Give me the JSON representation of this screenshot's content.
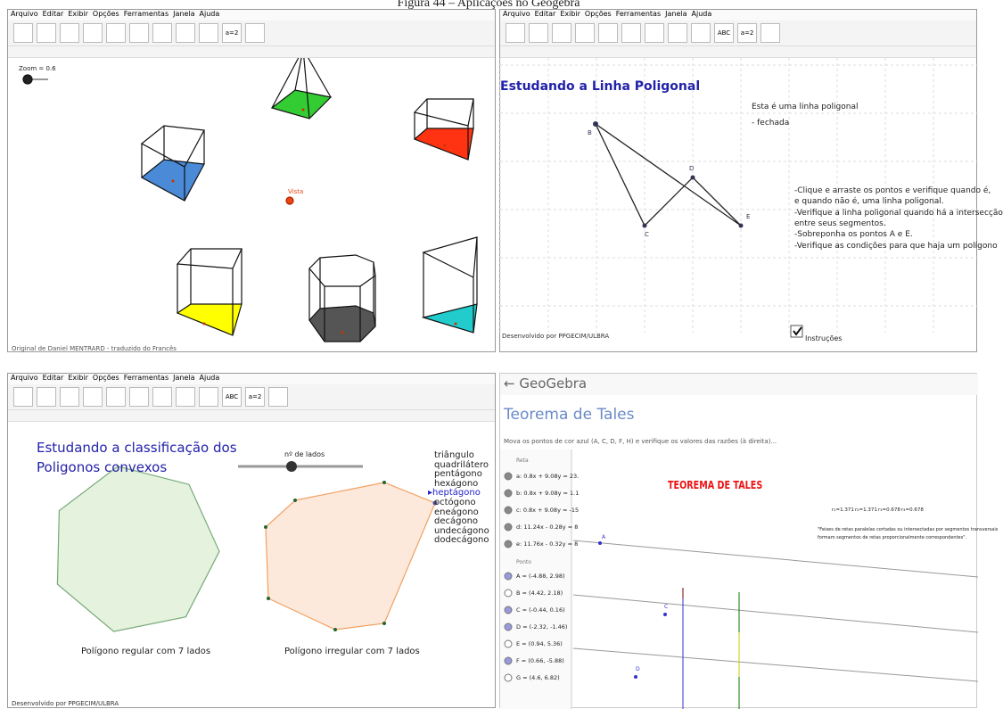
{
  "caption": "Figura 44 – Aplicações no Geogebra",
  "menu": [
    "Arquivo",
    "Editar",
    "Exibir",
    "Opções",
    "Ferramentas",
    "Janela",
    "Ajuda"
  ],
  "toolbar": {
    "abc": "ABC",
    "a2": "a=2"
  },
  "top_left": {
    "zoom": "Zoom = 0.6",
    "point": "Vista",
    "footer": "Original de Daniel MENTRARD - traduzido do Francês"
  },
  "top_right": {
    "title": "Estudando a Linha Poligonal",
    "note": [
      "Esta é uma linha poligonal",
      "- fechada"
    ],
    "points": [
      "B",
      "C",
      "D",
      "E"
    ],
    "instructions": [
      "-Clique e arraste os pontos e verifique quando é,",
      "e quando não é, uma linha poligonal.",
      "-Verifique a linha poligonal quando há a intersecção",
      "entre seus segmentos.",
      "-Sobreponha os pontos A e E.",
      "-Verifique as condições para que haja um polígono"
    ],
    "footer": "Desenvolvido por PPGECIM/ULBRA",
    "checkbox": "Instruções"
  },
  "bottom_left": {
    "title": [
      "Estudando a classificação dos",
      "Poligonos convexos"
    ],
    "slider": "nº de lados",
    "polygons": [
      "triângulo",
      "quadrilátero",
      "pentágono",
      "hexágono",
      "heptágono",
      "octógono",
      "eneágono",
      "decágono",
      "undecágono",
      "dodecágono"
    ],
    "left_caption": "Polígono regular com 7 lados",
    "right_caption": "Polígono irregular com 7 lados",
    "footer": "Desenvolvido por PPGECIM/ULBRA"
  },
  "bottom_right": {
    "app": "GeoGebra",
    "title": "Teorema de Tales",
    "instruction": "Mova os pontos de cor azul (A, C, D, F, H) e verifique os valores das razões (à direita)...",
    "reta_header": "Reta",
    "retas": [
      "a: 0.8x + 9.08y = 23.",
      "b: 0.8x + 9.08y = 1.1",
      "c: 0.8x + 9.08y = -15",
      "d: 11.24x - 0.28y = 8",
      "e: 11.76x - 0.32y = 8"
    ],
    "ponto_header": "Ponto",
    "pontos": [
      "A = (-4.88, 2.98)",
      "B = (4.42, 2.18)",
      "C = (-0.44, 0.16)",
      "D = (-2.32, -1.46)",
      "E = (0.94, 5.36)",
      "F = (0.66, -5.88)",
      "G = (4.6, 6.82)"
    ],
    "heading": "TEOREMA DE TALES",
    "ratios": [
      "r₁=1.371",
      "r₂=1.371",
      "r₃=0.678",
      "r₄=0.678"
    ],
    "quote": [
      "\"Feixes de retas paralelas cortadas ou intersectadas por segmentos transversais",
      "formam segmentos de retas proporcionalmente correspondentes\"."
    ],
    "labels": [
      "A",
      "C",
      "D"
    ]
  }
}
